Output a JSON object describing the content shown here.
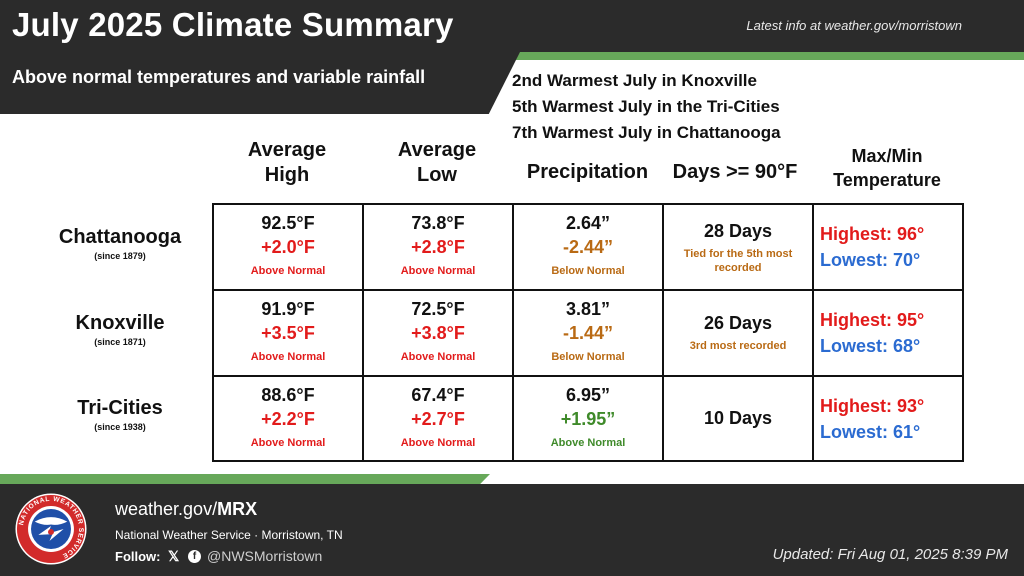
{
  "header": {
    "title": "July 2025 Climate Summary",
    "latest_info": "Latest info at weather.gov/morristown",
    "subtitle": "Above normal temperatures and variable rainfall",
    "records": [
      "2nd Warmest July in Knoxville",
      "5th Warmest July in the Tri-Cities",
      "7th Warmest July in Chattanooga"
    ]
  },
  "columns": {
    "avg_high": [
      "Average",
      "High"
    ],
    "avg_low": [
      "Average",
      "Low"
    ],
    "precip": "Precipitation",
    "days90": "Days >= 90°F",
    "maxmin": [
      "Max/Min",
      "Temperature"
    ]
  },
  "rows": [
    {
      "city": "Chattanooga",
      "since": "(since 1879)",
      "high": {
        "value": "92.5°F",
        "dep": "+2.0°F",
        "note": "Above Normal"
      },
      "low": {
        "value": "73.8°F",
        "dep": "+2.8°F",
        "note": "Above Normal"
      },
      "precip": {
        "value": "2.64”",
        "dep": "-2.44”",
        "note": "Below Normal"
      },
      "days": {
        "value": "28 Days",
        "note": "Tied for the 5th most recorded"
      },
      "highest": "Highest: 96°",
      "lowest": "Lowest: 70°"
    },
    {
      "city": "Knoxville",
      "since": "(since 1871)",
      "high": {
        "value": "91.9°F",
        "dep": "+3.5°F",
        "note": "Above Normal"
      },
      "low": {
        "value": "72.5°F",
        "dep": "+3.8°F",
        "note": "Above Normal"
      },
      "precip": {
        "value": "3.81”",
        "dep": "-1.44”",
        "note": "Below Normal"
      },
      "days": {
        "value": "26 Days",
        "note": "3rd most recorded"
      },
      "highest": "Highest: 95°",
      "lowest": "Lowest: 68°"
    },
    {
      "city": "Tri-Cities",
      "since": "(since 1938)",
      "high": {
        "value": "88.6°F",
        "dep": "+2.2°F",
        "note": "Above Normal"
      },
      "low": {
        "value": "67.4°F",
        "dep": "+2.7°F",
        "note": "Above Normal"
      },
      "precip": {
        "value": "6.95”",
        "dep": "+1.95”",
        "note": "Above Normal"
      },
      "days": {
        "value": "10 Days",
        "note": ""
      },
      "highest": "Highest: 93°",
      "lowest": "Lowest: 61°"
    }
  ],
  "footer": {
    "site_prefix": "weather.gov/",
    "site_suffix": "MRX",
    "office": "National Weather Service · Morristown, TN",
    "follow": "Follow:",
    "x_glyph": "𝕏",
    "fb_glyph": "f",
    "handle": "@NWSMorristown",
    "updated": "Updated: Fri Aug 01, 2025 8:39 PM",
    "logo_text": "NATIONAL WEATHER SERVICE"
  },
  "colors": {
    "above_temp": "#e21b1b",
    "below_precip": "#b96a14",
    "above_precip": "#3f8a2a",
    "lowest": "#2b6bd1",
    "dark_bar": "#2b2b2b",
    "green_stripe": "#67a85a"
  }
}
